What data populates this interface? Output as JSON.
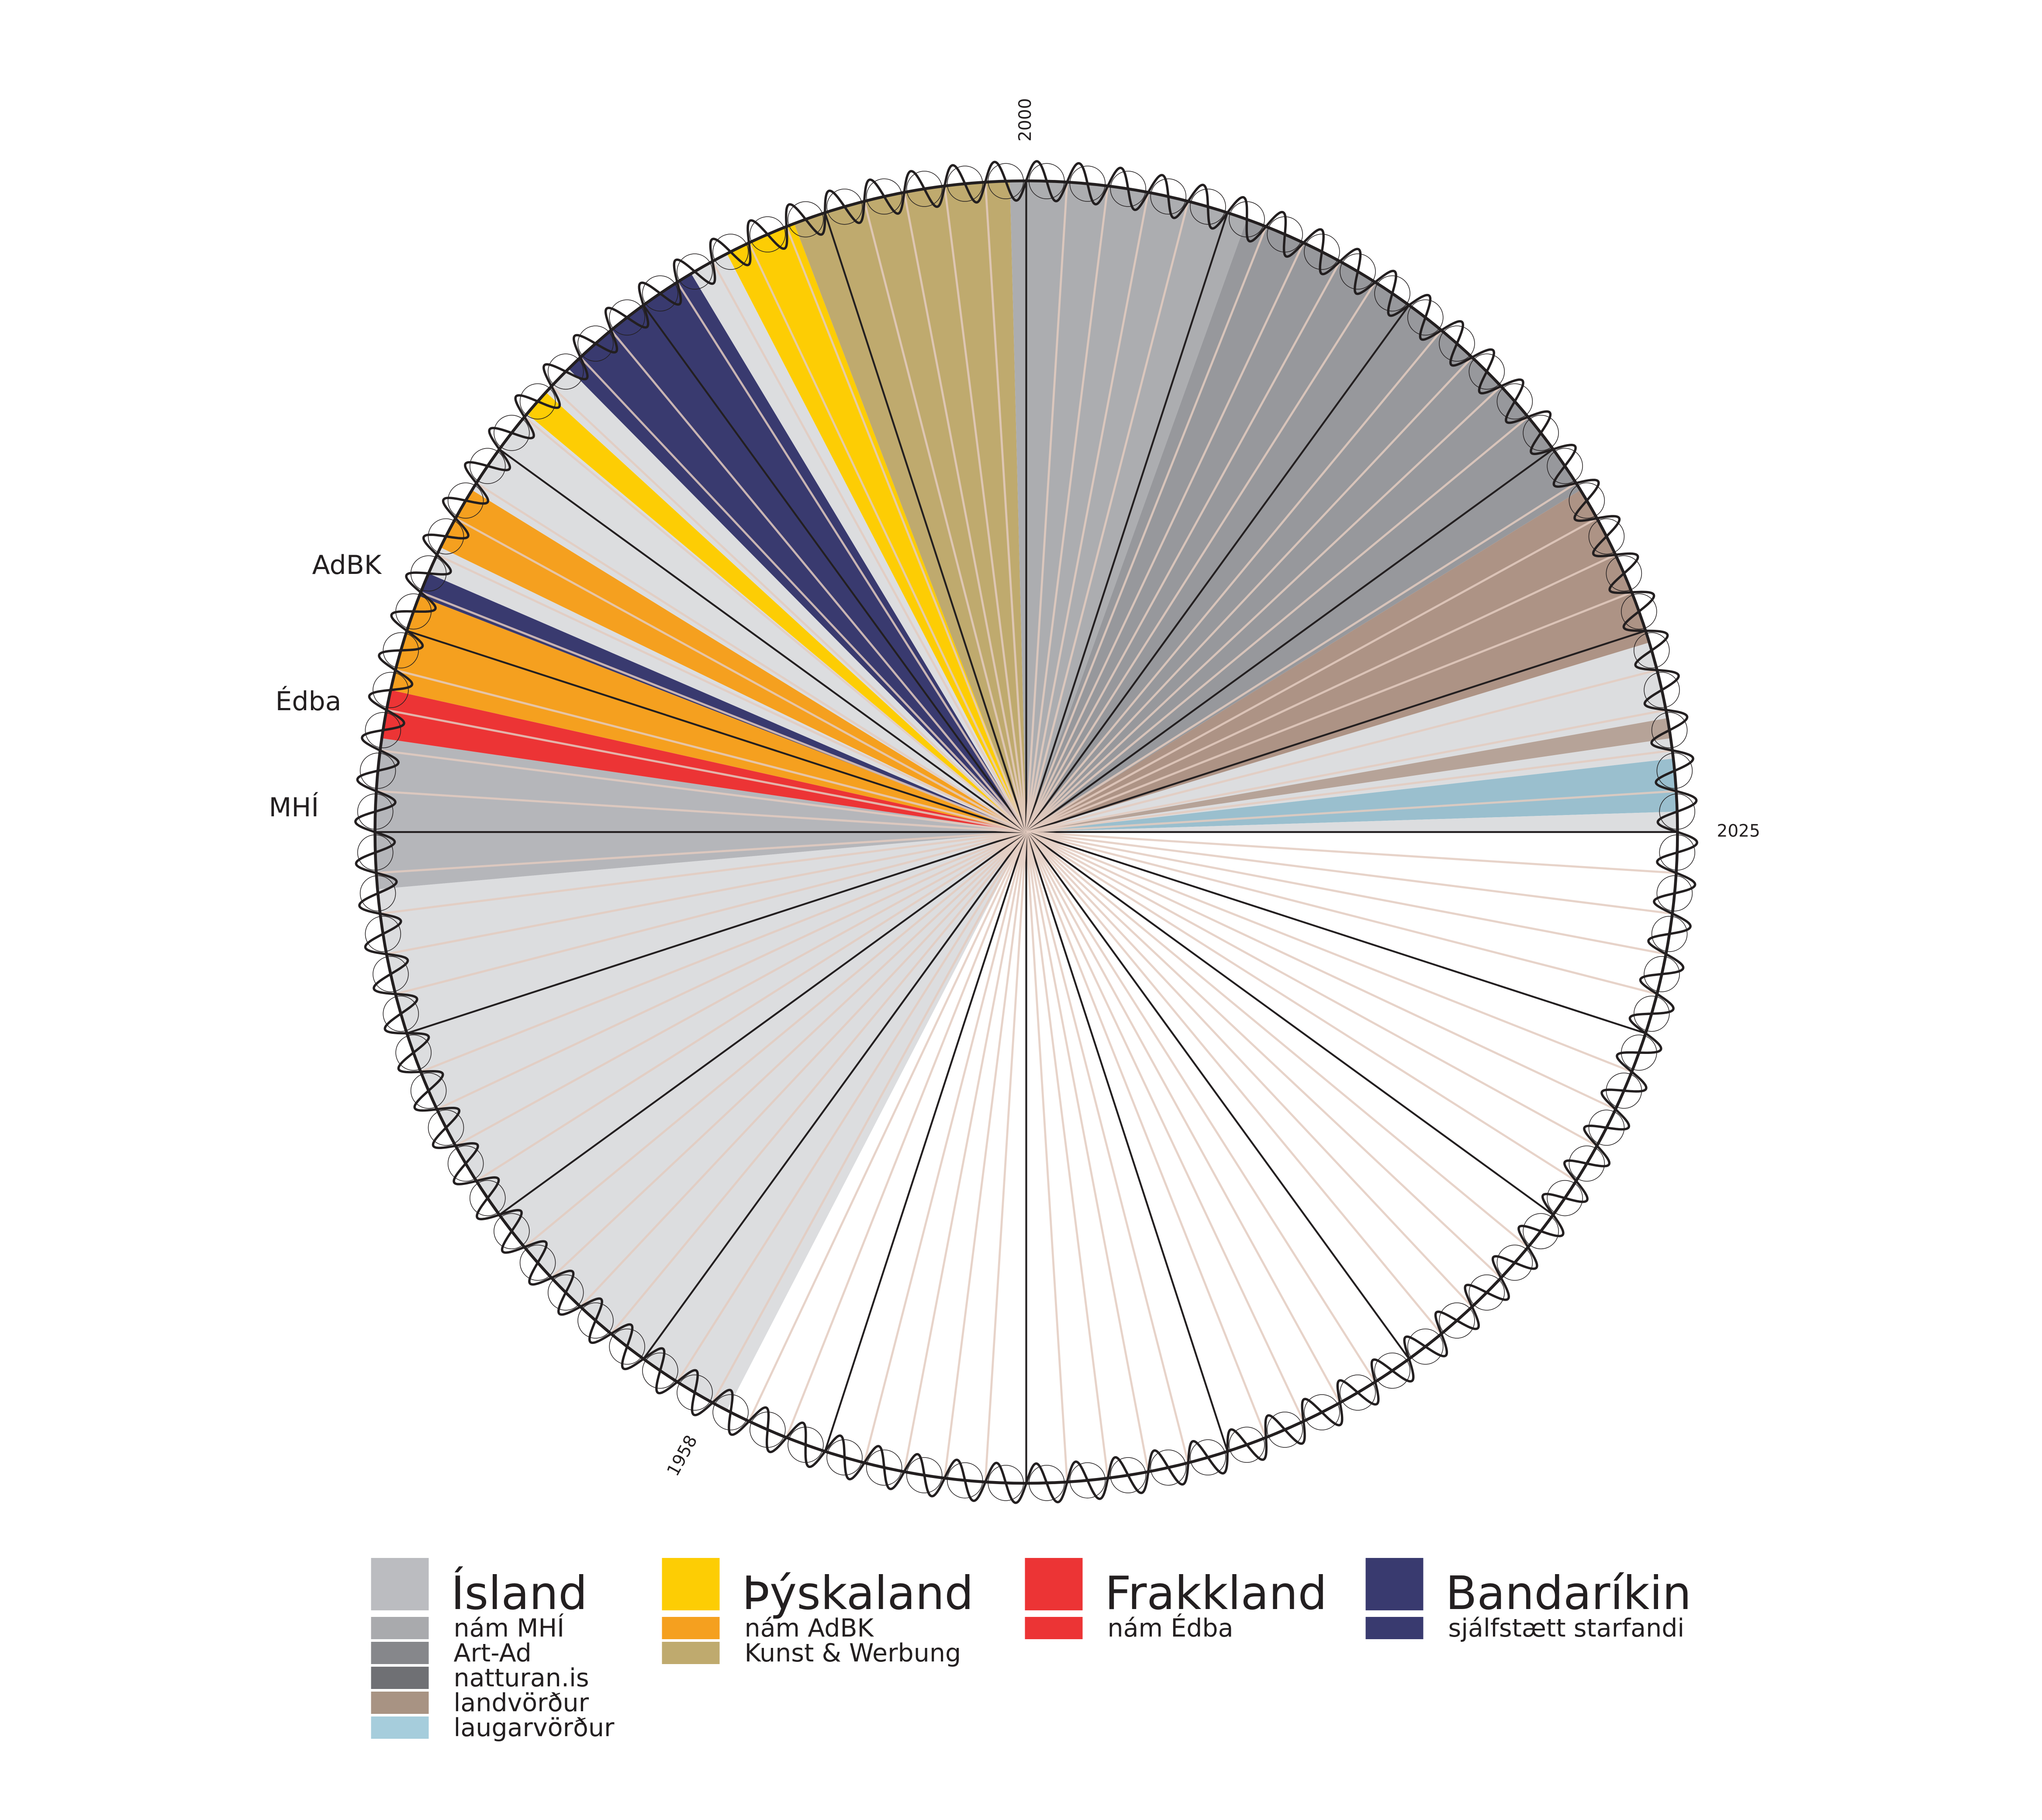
{
  "chart_data": {
    "type": "pie",
    "title": "",
    "description_axis": "circular timeline, 100 years per revolution, one spoke per year",
    "year_range": [
      1925,
      2025
    ],
    "year_labels": [
      {
        "year": 1958,
        "text": "1958"
      },
      {
        "year": 2000,
        "text": "2000"
      },
      {
        "year": 2025,
        "text": "2025"
      }
    ],
    "side_labels": [
      {
        "year": 1976,
        "text": "MHÍ"
      },
      {
        "year": 1978,
        "text": "Édba"
      },
      {
        "year": 1981,
        "text": "AdBK"
      }
    ],
    "segments": [
      {
        "start": 1957.6,
        "end": 1973.6,
        "category": "Ísland",
        "color": "#DCDDDF"
      },
      {
        "start": 1973.6,
        "end": 1977.3,
        "category": "nám MHÍ",
        "color": "#B5B6BA"
      },
      {
        "start": 1977.3,
        "end": 1978.5,
        "category": "nám Édba",
        "color": "#EC3435"
      },
      {
        "start": 1978.5,
        "end": 1980.9,
        "category": "nám AdBK",
        "color": "#F5A01F"
      },
      {
        "start": 1980.9,
        "end": 1981.5,
        "category": "sjálfstætt starfandi",
        "color": "#393A6F"
      },
      {
        "start": 1981.5,
        "end": 1982.2,
        "category": "Ísland",
        "color": "#DCDDDF"
      },
      {
        "start": 1982.2,
        "end": 1983.8,
        "category": "nám AdBK",
        "color": "#F5A01F"
      },
      {
        "start": 1983.8,
        "end": 1986.1,
        "category": "Ísland",
        "color": "#DCDDDF"
      },
      {
        "start": 1986.1,
        "end": 1986.8,
        "category": "Þýskaland",
        "color": "#FDCD04"
      },
      {
        "start": 1986.8,
        "end": 1987.6,
        "category": "Ísland",
        "color": "#DCDDDF"
      },
      {
        "start": 1987.6,
        "end": 1991.4,
        "category": "sjálfstætt starfandi",
        "color": "#393A6F"
      },
      {
        "start": 1991.4,
        "end": 1992.4,
        "category": "Ísland",
        "color": "#DCDDDF"
      },
      {
        "start": 1992.4,
        "end": 1994.2,
        "category": "Þýskaland",
        "color": "#FDCD04"
      },
      {
        "start": 1994.2,
        "end": 1999.6,
        "category": "Kunst & Werbung",
        "color": "#BFAA6E"
      },
      {
        "start": 1999.6,
        "end": 2005.5,
        "category": "Art-Ad",
        "color": "#ACADB0"
      },
      {
        "start": 2005.5,
        "end": 2016.2,
        "category": "natturan.is",
        "color": "#97989C"
      },
      {
        "start": 2016.2,
        "end": 2020.3,
        "category": "landvörður",
        "color": "#AD9385"
      },
      {
        "start": 2020.3,
        "end": 2022.2,
        "category": "Ísland",
        "color": "#DCDDDF"
      },
      {
        "start": 2022.2,
        "end": 2022.7,
        "category": "landvörður",
        "color": "#B6A398"
      },
      {
        "start": 2022.7,
        "end": 2023.2,
        "category": "Ísland",
        "color": "#DCDDDF"
      },
      {
        "start": 2023.2,
        "end": 2024.5,
        "category": "laugarvörður",
        "color": "#9ABFCE"
      },
      {
        "start": 2024.5,
        "end": 2025.0,
        "category": "Ísland",
        "color": "#DCDDDF"
      }
    ],
    "spoke_colors": {
      "major": "#231F20",
      "minor": "#E3CBBF"
    },
    "legend": [
      {
        "title": "Ísland",
        "color": "#BBBCC0",
        "items": [
          {
            "label": "nám MHÍ",
            "color": "#A9AAAD"
          },
          {
            "label": "Art-Ad",
            "color": "#86878B"
          },
          {
            "label": "natturan.is",
            "color": "#6F7074"
          },
          {
            "label": "landvörður",
            "color": "#A89383"
          },
          {
            "label": "laugarvörður",
            "color": "#A6CDDC"
          }
        ]
      },
      {
        "title": "Þýskaland",
        "color": "#FDCD04",
        "items": [
          {
            "label": "nám AdBK",
            "color": "#F5A01F"
          },
          {
            "label": "Kunst & Werbung",
            "color": "#BFAA6E"
          }
        ]
      },
      {
        "title": "Frakkland",
        "color": "#EC3435",
        "items": [
          {
            "label": "nám Édba",
            "color": "#EC3435"
          }
        ]
      },
      {
        "title": "Bandaríkin",
        "color": "#393A6F",
        "items": [
          {
            "label": "sjálfstætt starfandi",
            "color": "#393A6F"
          }
        ]
      }
    ]
  }
}
